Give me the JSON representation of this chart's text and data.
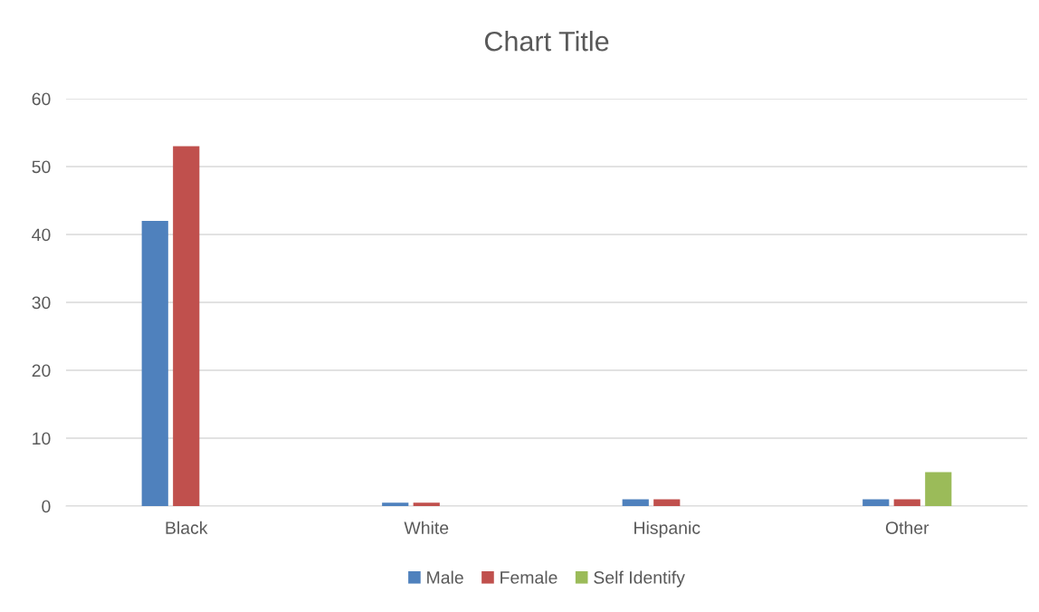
{
  "chart_data": {
    "type": "bar",
    "title": "Chart Title",
    "categories": [
      "Black",
      "White",
      "Hispanic",
      "Other"
    ],
    "series": [
      {
        "name": "Male",
        "color": "#4f81bd",
        "values": [
          42,
          0.5,
          1,
          1
        ]
      },
      {
        "name": "Female",
        "color": "#c0504d",
        "values": [
          53,
          0.5,
          1,
          1
        ]
      },
      {
        "name": "Self Identify",
        "color": "#9bbb59",
        "values": [
          null,
          null,
          null,
          5
        ]
      }
    ],
    "ylim": [
      0,
      60
    ],
    "yticks": [
      0,
      10,
      20,
      30,
      40,
      50,
      60
    ],
    "grid": "y",
    "legend": "bottom"
  }
}
